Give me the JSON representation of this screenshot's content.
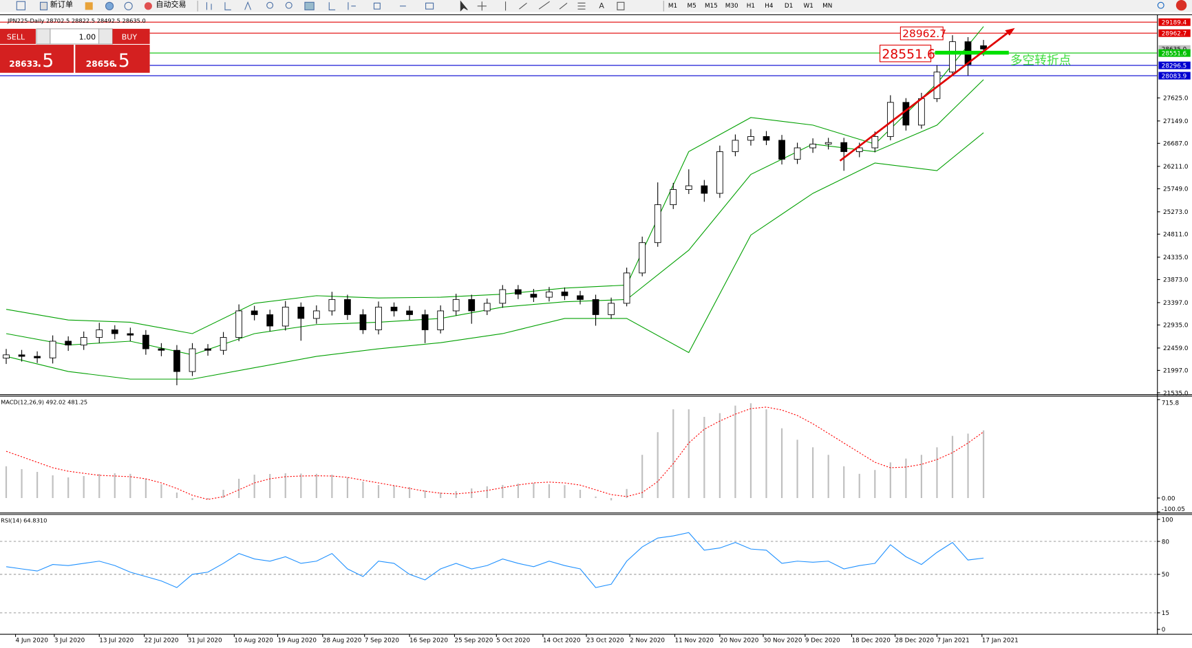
{
  "toolbar": {
    "new_order": "新订单",
    "auto_trading": "自动交易",
    "timeframes": [
      "M1",
      "M5",
      "M15",
      "M30",
      "H1",
      "H4",
      "D1",
      "W1",
      "MN"
    ]
  },
  "trade_panel": {
    "sell": "SELL",
    "buy": "BUY",
    "lots": "1.00",
    "sell_price": "28633",
    "sell_price_frac": ".5",
    "buy_price": "28656",
    "buy_price_frac": ".5"
  },
  "annotations": {
    "high_box": 28962.7,
    "low_box": 28551.6,
    "pivot_note": "多空转折点"
  },
  "chart_data": [
    {
      "type": "candlestick",
      "title": "JPN225-Daily  28702.5 28822.5 28492.5 28635.0",
      "open": [
        22250,
        22318,
        22287,
        22255,
        22600,
        22520,
        22678,
        22835,
        22756,
        22725,
        22443,
        22412,
        21973,
        22443,
        22412,
        22678,
        23226,
        23148,
        22913,
        23305,
        23070,
        23226,
        23461,
        23148,
        22835,
        23305,
        23226,
        23148,
        22835,
        23226,
        23461,
        23226,
        23383,
        23665,
        23571,
        23508,
        23618,
        23540,
        23461,
        23148,
        23383,
        24009,
        24636,
        25419,
        25732,
        25810,
        25654,
        26515,
        26750,
        26828,
        26750,
        26358,
        26593,
        26672,
        26703,
        26515,
        26593,
        26828,
        27533,
        27063,
        27611,
        28159,
        28786,
        28702.5
      ],
      "high": [
        22440,
        22420,
        22390,
        22720,
        22700,
        22800,
        22980,
        22930,
        22880,
        22830,
        22560,
        22520,
        22560,
        22540,
        22790,
        23360,
        23330,
        23250,
        23430,
        23400,
        23340,
        23620,
        23560,
        23260,
        23420,
        23400,
        23330,
        23250,
        23340,
        23580,
        23560,
        23480,
        23760,
        23760,
        23680,
        23720,
        23710,
        23640,
        23560,
        23500,
        24120,
        24760,
        25880,
        25870,
        26150,
        25930,
        26640,
        26870,
        26980,
        26940,
        26860,
        26700,
        26790,
        26800,
        26800,
        26700,
        26930,
        27680,
        27620,
        27730,
        28300,
        28920,
        28880,
        28822.5
      ],
      "low": [
        22130,
        22180,
        22150,
        22140,
        22400,
        22420,
        22560,
        22640,
        22600,
        22320,
        22290,
        21690,
        21880,
        22300,
        22320,
        22600,
        23030,
        22800,
        22820,
        22610,
        22960,
        23130,
        23040,
        22750,
        22740,
        23110,
        23040,
        22560,
        22760,
        23130,
        22960,
        23140,
        23290,
        23470,
        23410,
        23420,
        23450,
        23360,
        22920,
        23060,
        23320,
        23940,
        24550,
        25330,
        25640,
        25480,
        25560,
        26420,
        26640,
        26650,
        26250,
        26260,
        26490,
        26560,
        26120,
        26400,
        26500,
        26750,
        26950,
        26990,
        27540,
        28080,
        28090,
        28492.5
      ],
      "close": [
        22318,
        22287,
        22255,
        22600,
        22520,
        22678,
        22835,
        22756,
        22725,
        22443,
        22412,
        21973,
        22443,
        22412,
        22678,
        23226,
        23148,
        22913,
        23305,
        23070,
        23226,
        23461,
        23148,
        22835,
        23305,
        23226,
        23148,
        22835,
        23226,
        23461,
        23226,
        23383,
        23665,
        23571,
        23508,
        23618,
        23540,
        23461,
        23148,
        23383,
        24009,
        24636,
        25419,
        25732,
        25810,
        25654,
        26515,
        26750,
        26828,
        26750,
        26358,
        26593,
        26672,
        26703,
        26515,
        26593,
        26828,
        27533,
        27063,
        27611,
        28159,
        28786,
        28316,
        28635.0
      ],
      "bands": {
        "color": "#00a000",
        "x": [
          0,
          4,
          8,
          12,
          16,
          20,
          24,
          28,
          32,
          36,
          40,
          44,
          48,
          52,
          56,
          60,
          63
        ],
        "upper": [
          23258,
          23038,
          22991,
          22756,
          23383,
          23539,
          23493,
          23508,
          23571,
          23696,
          23759,
          26515,
          27220,
          27063,
          26672,
          27924,
          29099
        ],
        "middle": [
          22756,
          22522,
          22600,
          22318,
          22756,
          22944,
          22991,
          23070,
          23305,
          23414,
          23461,
          24479,
          26045,
          26672,
          26515,
          27063,
          28003
        ],
        "lower": [
          22287,
          21973,
          21817,
          21817,
          22052,
          22287,
          22443,
          22569,
          22756,
          23070,
          23070,
          22365,
          24792,
          25654,
          26280,
          26123,
          26906
        ]
      },
      "xlim": [
        -0.4,
        63.6
      ],
      "xticks": [
        {
          "value": 0.6,
          "label": "4 Jun 2020"
        },
        {
          "value": 3.1,
          "label": "3 Jul 2020"
        },
        {
          "value": 6.0,
          "label": "13 Jul 2020"
        },
        {
          "value": 8.9,
          "label": "22 Jul 2020"
        },
        {
          "value": 11.7,
          "label": "31 Jul 2020"
        },
        {
          "value": 14.7,
          "label": "10 Aug 2020"
        },
        {
          "value": 17.5,
          "label": "19 Aug 2020"
        },
        {
          "value": 20.4,
          "label": "28 Aug 2020"
        },
        {
          "value": 23.1,
          "label": "7 Sep 2020"
        },
        {
          "value": 26.0,
          "label": "16 Sep 2020"
        },
        {
          "value": 28.9,
          "label": "25 Sep 2020"
        },
        {
          "value": 31.6,
          "label": "5 Oct 2020"
        },
        {
          "value": 34.6,
          "label": "14 Oct 2020"
        },
        {
          "value": 37.4,
          "label": "23 Oct 2020"
        },
        {
          "value": 40.2,
          "label": "2 Nov 2020"
        },
        {
          "value": 43.1,
          "label": "11 Nov 2020"
        },
        {
          "value": 46.0,
          "label": "20 Nov 2020"
        },
        {
          "value": 48.8,
          "label": "30 Nov 2020"
        },
        {
          "value": 51.5,
          "label": "9 Dec 2020"
        },
        {
          "value": 54.5,
          "label": "18 Dec 2020"
        },
        {
          "value": 57.3,
          "label": "28 Dec 2020"
        },
        {
          "value": 60.0,
          "label": "7 Jan 2021"
        },
        {
          "value": 62.9,
          "label": "17 Jan 2021"
        }
      ],
      "ylim": [
        21535,
        29334
      ],
      "yticks": [
        {
          "value": 21535,
          "label": "21535.0"
        },
        {
          "value": 21997,
          "label": "21997.0"
        },
        {
          "value": 22459,
          "label": "22459.0"
        },
        {
          "value": 22935,
          "label": "22935.0"
        },
        {
          "value": 23397,
          "label": "23397.0"
        },
        {
          "value": 23873,
          "label": "23873.0"
        },
        {
          "value": 24335,
          "label": "24335.0"
        },
        {
          "value": 24811,
          "label": "24811.0"
        },
        {
          "value": 25273,
          "label": "25273.0"
        },
        {
          "value": 25749,
          "label": "25749.0"
        },
        {
          "value": 26211,
          "label": "26211.0"
        },
        {
          "value": 26687,
          "label": "26687.0"
        },
        {
          "value": 27149,
          "label": "27149.0"
        },
        {
          "value": 27625,
          "label": "27625.0"
        }
      ],
      "last_price": {
        "value": 28635,
        "label": "28635.0"
      },
      "levels": [
        {
          "value": 29189.4,
          "color": "#e00000"
        },
        {
          "value": 28962.7,
          "color": "#e00000"
        },
        {
          "value": 28551.6,
          "color": "#00c000"
        },
        {
          "value": 28296.5,
          "color": "#0000d0"
        },
        {
          "value": 28083.9,
          "color": "#0000d0"
        }
      ]
    },
    {
      "type": "macd",
      "title": "MACD(12,26,9) 492.02 481.25",
      "histogram": [
        231,
        210,
        190,
        165,
        150,
        160,
        175,
        180,
        176,
        140,
        100,
        40,
        -15,
        -10,
        60,
        140,
        170,
        175,
        180,
        178,
        176,
        170,
        150,
        120,
        95,
        90,
        80,
        55,
        40,
        50,
        70,
        85,
        95,
        105,
        110,
        100,
        94,
        60,
        11,
        -17,
        66,
        314,
        479,
        645,
        645,
        590,
        617,
        672,
        689,
        645,
        507,
        424,
        369,
        314,
        231,
        176,
        204,
        259,
        287,
        314,
        369,
        452,
        468,
        492.02
      ],
      "signal": [
        340,
        300,
        260,
        220,
        195,
        180,
        165,
        160,
        155,
        140,
        110,
        70,
        20,
        -10,
        10,
        60,
        110,
        140,
        155,
        160,
        162,
        160,
        150,
        130,
        110,
        90,
        70,
        50,
        35,
        30,
        40,
        55,
        75,
        95,
        110,
        116,
        110,
        94,
        60,
        25,
        11,
        40,
        120,
        250,
        400,
        500,
        560,
        610,
        650,
        661,
        640,
        600,
        540,
        470,
        400,
        330,
        260,
        220,
        225,
        245,
        280,
        330,
        400,
        481.25
      ],
      "histogram_color": "#c0c0c0",
      "signal_color": "#ff0000",
      "ylim": [
        -100.05,
        715.8
      ],
      "yticks": [
        -100.05,
        {
          "value": 0,
          "label": "0.00"
        },
        715.8
      ]
    },
    {
      "type": "line",
      "title": "RSI(14) 64.8310",
      "color": "#1e90ff",
      "values": [
        57,
        55,
        53,
        59,
        58,
        60,
        62,
        58,
        52,
        48,
        44,
        38,
        50,
        52,
        60,
        69,
        64,
        62,
        66,
        60,
        62,
        69,
        55,
        48,
        62,
        60,
        50,
        45,
        55,
        60,
        55,
        58,
        64,
        60,
        57,
        62,
        58,
        55,
        38,
        41,
        62,
        75,
        83,
        85,
        88,
        72,
        74,
        79,
        73,
        72,
        60,
        62,
        61,
        62,
        55,
        58,
        60,
        77,
        66,
        59,
        70,
        79,
        63,
        64.831
      ],
      "ylim": [
        0,
        100
      ],
      "yticks": [
        0,
        15,
        50,
        80,
        100
      ],
      "levels": [
        15,
        50,
        80
      ]
    }
  ]
}
